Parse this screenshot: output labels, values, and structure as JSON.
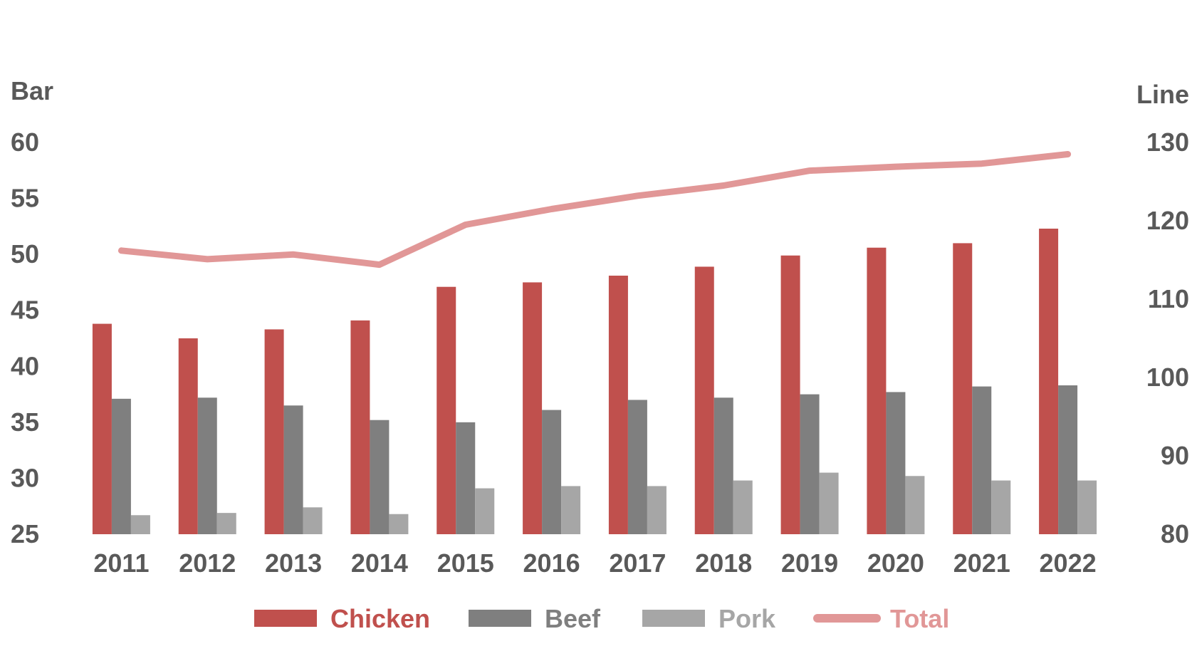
{
  "chart_data": {
    "type": "bar",
    "categories": [
      "2011",
      "2012",
      "2013",
      "2014",
      "2015",
      "2016",
      "2017",
      "2018",
      "2019",
      "2020",
      "2021",
      "2022"
    ],
    "series": [
      {
        "name": "Chicken",
        "type": "bar",
        "axis": "left",
        "color": "#c0504d",
        "values": [
          43.8,
          42.5,
          43.3,
          44.1,
          47.1,
          47.5,
          48.1,
          48.9,
          49.9,
          50.6,
          51.0,
          52.3
        ]
      },
      {
        "name": "Beef",
        "type": "bar",
        "axis": "left",
        "color": "#7f7f7f",
        "values": [
          37.1,
          37.2,
          36.5,
          35.2,
          35.0,
          36.1,
          37.0,
          37.2,
          37.5,
          37.7,
          38.2,
          38.3
        ]
      },
      {
        "name": "Pork",
        "type": "bar",
        "axis": "left",
        "color": "#a6a6a6",
        "values": [
          26.7,
          26.9,
          27.4,
          26.8,
          29.1,
          29.3,
          29.3,
          29.8,
          30.5,
          30.2,
          29.8,
          29.8
        ]
      },
      {
        "name": "Total",
        "type": "line",
        "axis": "right",
        "color": "#e19797",
        "values": [
          116.2,
          115.1,
          115.7,
          114.4,
          119.5,
          121.5,
          123.2,
          124.5,
          126.4,
          126.9,
          127.3,
          128.5
        ]
      }
    ],
    "y_left": {
      "label": "Bar",
      "lim": [
        25,
        60
      ],
      "ticks": [
        "25",
        "30",
        "35",
        "40",
        "45",
        "50",
        "55",
        "60"
      ]
    },
    "y_right": {
      "label": "Line",
      "lim": [
        80,
        130
      ],
      "ticks": [
        "80",
        "90",
        "100",
        "110",
        "120",
        "130"
      ]
    },
    "grid": false,
    "legend": {
      "position": "bottom"
    },
    "colors": {
      "axis_text": "#595959"
    }
  }
}
